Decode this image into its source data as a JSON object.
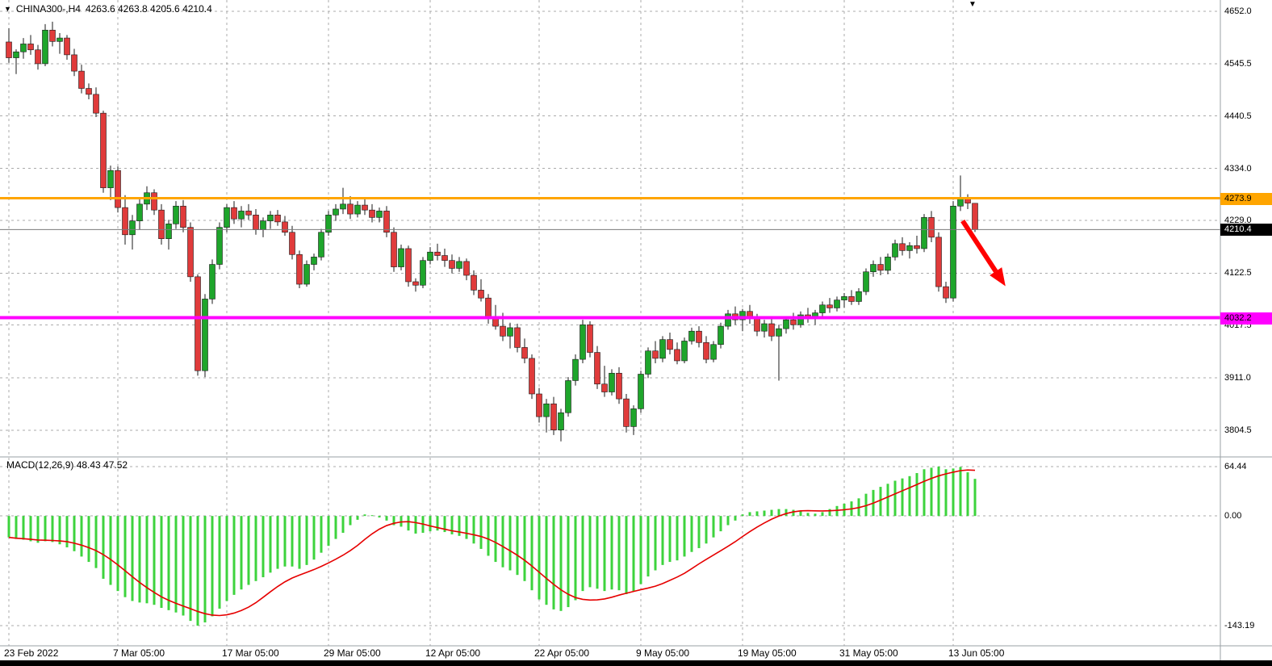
{
  "header": {
    "symbol": "CHINA300-,H4",
    "ohlc": "4263.6 4263.8 4205.6 4210.4"
  },
  "chart_data": {
    "type": "candlestick",
    "symbol": "CHINA300-",
    "timeframe": "H4",
    "grid": true,
    "colors": {
      "up": "#1ea52b",
      "down": "#e03b3b",
      "wick": "#1a1a1a",
      "grid": "#ababab",
      "separator": "#9aa0a6",
      "macd_hist": "#3dd33d",
      "macd_signal": "#e60000",
      "bid_line": "#7a7a7a"
    },
    "price_axis": {
      "ticks": [
        "4652.0",
        "4545.5",
        "4440.5",
        "4334.0",
        "4229.0",
        "4122.5",
        "4017.5",
        "3911.0",
        "3804.5"
      ]
    },
    "time_axis": {
      "labels": [
        "23 Feb 2022",
        "7 Mar 05:00",
        "17 Mar 05:00",
        "29 Mar 05:00",
        "12 Apr 05:00",
        "22 Apr 05:00",
        "9 May 05:00",
        "19 May 05:00",
        "31 May 05:00",
        "13 Jun 05:00"
      ],
      "candle_indices": [
        0,
        15,
        30,
        44,
        58,
        73,
        87,
        101,
        115,
        130
      ]
    },
    "hlines": [
      {
        "name": "resistance",
        "price": 4273.9,
        "label": "4273.9",
        "color": "#ffa500",
        "text_color": "#000000",
        "width": 3
      },
      {
        "name": "support",
        "price": 4032.2,
        "label": "4032.2",
        "color": "#ff00ff",
        "text_color": "#000000",
        "width": 4
      }
    ],
    "bid": {
      "price": 4210.4,
      "label": "4210.4",
      "bg": "#000000",
      "text_color": "#ffffff"
    },
    "arrow": {
      "color": "#ff0000",
      "from": {
        "candle": 131.3,
        "price": 4228
      },
      "to": {
        "candle": 137.2,
        "price": 4096
      }
    },
    "candles": [
      [
        4590,
        4618,
        4548,
        4558
      ],
      [
        4558,
        4575,
        4525,
        4570
      ],
      [
        4570,
        4598,
        4556,
        4586
      ],
      [
        4586,
        4604,
        4564,
        4574
      ],
      [
        4574,
        4584,
        4534,
        4546
      ],
      [
        4546,
        4626,
        4541,
        4614
      ],
      [
        4614,
        4631,
        4581,
        4591
      ],
      [
        4591,
        4608,
        4566,
        4598
      ],
      [
        4598,
        4604,
        4554,
        4564
      ],
      [
        4564,
        4576,
        4521,
        4531
      ],
      [
        4531,
        4544,
        4486,
        4496
      ],
      [
        4496,
        4506,
        4474,
        4484
      ],
      [
        4484,
        4498,
        4438,
        4446
      ],
      [
        4446,
        4451,
        4285,
        4295
      ],
      [
        4295,
        4340,
        4270,
        4330
      ],
      [
        4330,
        4338,
        4245,
        4255
      ],
      [
        4255,
        4280,
        4180,
        4200
      ],
      [
        4200,
        4240,
        4170,
        4228
      ],
      [
        4228,
        4275,
        4210,
        4262
      ],
      [
        4262,
        4298,
        4250,
        4285
      ],
      [
        4285,
        4292,
        4240,
        4250
      ],
      [
        4250,
        4262,
        4180,
        4192
      ],
      [
        4192,
        4230,
        4170,
        4222
      ],
      [
        4222,
        4268,
        4212,
        4258
      ],
      [
        4258,
        4270,
        4205,
        4215
      ],
      [
        4215,
        4225,
        4105,
        4115
      ],
      [
        4115,
        4120,
        3915,
        3925
      ],
      [
        3925,
        4080,
        3912,
        4070
      ],
      [
        4070,
        4150,
        4060,
        4140
      ],
      [
        4140,
        4225,
        4130,
        4215
      ],
      [
        4215,
        4262,
        4205,
        4255
      ],
      [
        4255,
        4268,
        4222,
        4232
      ],
      [
        4232,
        4258,
        4215,
        4248
      ],
      [
        4248,
        4262,
        4230,
        4240
      ],
      [
        4240,
        4252,
        4200,
        4210
      ],
      [
        4210,
        4235,
        4195,
        4228
      ],
      [
        4228,
        4248,
        4212,
        4240
      ],
      [
        4240,
        4250,
        4218,
        4226
      ],
      [
        4226,
        4238,
        4198,
        4205
      ],
      [
        4205,
        4218,
        4150,
        4160
      ],
      [
        4160,
        4168,
        4092,
        4100
      ],
      [
        4100,
        4148,
        4095,
        4140
      ],
      [
        4140,
        4162,
        4128,
        4155
      ],
      [
        4155,
        4212,
        4148,
        4205
      ],
      [
        4205,
        4248,
        4198,
        4240
      ],
      [
        4240,
        4262,
        4228,
        4252
      ],
      [
        4252,
        4295,
        4242,
        4262
      ],
      [
        4262,
        4278,
        4232,
        4242
      ],
      [
        4242,
        4268,
        4235,
        4260
      ],
      [
        4260,
        4272,
        4240,
        4250
      ],
      [
        4250,
        4262,
        4225,
        4235
      ],
      [
        4235,
        4255,
        4225,
        4248
      ],
      [
        4248,
        4258,
        4195,
        4205
      ],
      [
        4205,
        4215,
        4125,
        4135
      ],
      [
        4135,
        4180,
        4128,
        4172
      ],
      [
        4172,
        4178,
        4095,
        4105
      ],
      [
        4105,
        4112,
        4085,
        4098
      ],
      [
        4098,
        4155,
        4092,
        4148
      ],
      [
        4148,
        4175,
        4140,
        4165
      ],
      [
        4165,
        4182,
        4148,
        4158
      ],
      [
        4158,
        4172,
        4135,
        4148
      ],
      [
        4148,
        4160,
        4122,
        4132
      ],
      [
        4132,
        4155,
        4125,
        4146
      ],
      [
        4146,
        4152,
        4108,
        4118
      ],
      [
        4118,
        4128,
        4078,
        4088
      ],
      [
        4088,
        4110,
        4065,
        4072
      ],
      [
        4072,
        4080,
        4020,
        4030
      ],
      [
        4030,
        4058,
        4008,
        4015
      ],
      [
        4015,
        4042,
        3985,
        3995
      ],
      [
        3995,
        4022,
        3970,
        4012
      ],
      [
        4012,
        4020,
        3962,
        3972
      ],
      [
        3972,
        3990,
        3940,
        3950
      ],
      [
        3950,
        3958,
        3868,
        3878
      ],
      [
        3878,
        3890,
        3820,
        3832
      ],
      [
        3832,
        3868,
        3800,
        3858
      ],
      [
        3858,
        3872,
        3795,
        3805
      ],
      [
        3805,
        3848,
        3782,
        3840
      ],
      [
        3840,
        3912,
        3832,
        3905
      ],
      [
        3905,
        3958,
        3895,
        3948
      ],
      [
        3948,
        4028,
        3940,
        4018
      ],
      [
        4018,
        4025,
        3952,
        3962
      ],
      [
        3962,
        3975,
        3888,
        3898
      ],
      [
        3898,
        3935,
        3872,
        3882
      ],
      [
        3882,
        3928,
        3875,
        3920
      ],
      [
        3920,
        3932,
        3858,
        3868
      ],
      [
        3868,
        3878,
        3800,
        3812
      ],
      [
        3812,
        3855,
        3795,
        3848
      ],
      [
        3848,
        3925,
        3840,
        3918
      ],
      [
        3918,
        3972,
        3910,
        3965
      ],
      [
        3965,
        3985,
        3940,
        3950
      ],
      [
        3950,
        3995,
        3942,
        3988
      ],
      [
        3988,
        4002,
        3958,
        3968
      ],
      [
        3968,
        3982,
        3938,
        3945
      ],
      [
        3945,
        3992,
        3940,
        3985
      ],
      [
        3985,
        4012,
        3978,
        4005
      ],
      [
        4005,
        4015,
        3972,
        3982
      ],
      [
        3982,
        3995,
        3940,
        3948
      ],
      [
        3948,
        3985,
        3942,
        3978
      ],
      [
        3978,
        4022,
        3970,
        4015
      ],
      [
        4015,
        4048,
        4008,
        4040
      ],
      [
        4040,
        4055,
        4018,
        4028
      ],
      [
        4028,
        4050,
        4005,
        4045
      ],
      [
        4045,
        4058,
        4020,
        4032
      ],
      [
        4032,
        4040,
        3995,
        4005
      ],
      [
        4005,
        4028,
        3992,
        4020
      ],
      [
        4020,
        4032,
        3985,
        3995
      ],
      [
        3995,
        4018,
        3905,
        4010
      ],
      [
        4010,
        4035,
        4000,
        4028
      ],
      [
        4028,
        4042,
        4008,
        4018
      ],
      [
        4018,
        4045,
        4012,
        4038
      ],
      [
        4038,
        4052,
        4022,
        4030
      ],
      [
        4030,
        4048,
        4018,
        4042
      ],
      [
        4042,
        4065,
        4035,
        4058
      ],
      [
        4058,
        4072,
        4042,
        4052
      ],
      [
        4052,
        4075,
        4045,
        4068
      ],
      [
        4068,
        4082,
        4052,
        4075
      ],
      [
        4075,
        4088,
        4058,
        4065
      ],
      [
        4065,
        4092,
        4058,
        4085
      ],
      [
        4085,
        4132,
        4078,
        4125
      ],
      [
        4125,
        4148,
        4115,
        4140
      ],
      [
        4140,
        4155,
        4118,
        4128
      ],
      [
        4128,
        4162,
        4120,
        4155
      ],
      [
        4155,
        4190,
        4148,
        4182
      ],
      [
        4182,
        4195,
        4158,
        4168
      ],
      [
        4168,
        4185,
        4152,
        4178
      ],
      [
        4178,
        4198,
        4162,
        4172
      ],
      [
        4172,
        4242,
        4165,
        4235
      ],
      [
        4235,
        4248,
        4185,
        4195
      ],
      [
        4195,
        4205,
        4085,
        4095
      ],
      [
        4095,
        4105,
        4062,
        4072
      ],
      [
        4072,
        4268,
        4065,
        4258
      ],
      [
        4258,
        4320,
        4248,
        4272
      ],
      [
        4272,
        4282,
        4252,
        4264
      ],
      [
        4263.6,
        4263.8,
        4205.6,
        4210.4
      ]
    ],
    "macd": {
      "label": "MACD(12,26,9) 48.43 47.52",
      "params": [
        12,
        26,
        9
      ],
      "values_text": {
        "macd": "48.43",
        "signal": "47.52"
      },
      "axis_ticks": [
        "64.44",
        "0.00",
        "-143.19"
      ],
      "histogram": [
        -28,
        -30,
        -31,
        -33,
        -35,
        -33,
        -34,
        -37,
        -41,
        -46,
        -53,
        -60,
        -68,
        -82,
        -90,
        -98,
        -106,
        -111,
        -113,
        -114,
        -116,
        -120,
        -123,
        -126,
        -130,
        -137,
        -143.19,
        -139,
        -131,
        -121,
        -111,
        -103,
        -96,
        -90,
        -85,
        -80,
        -74,
        -69,
        -66,
        -66,
        -69,
        -64,
        -57,
        -48,
        -39,
        -30,
        -22,
        -12,
        -5,
        2,
        1,
        -2,
        -6,
        -12,
        -14,
        -19,
        -23,
        -22,
        -20,
        -19,
        -21,
        -24,
        -26,
        -30,
        -36,
        -43,
        -52,
        -60,
        -67,
        -71,
        -77,
        -85,
        -97,
        -109,
        -116,
        -122,
        -124,
        -119,
        -110,
        -98,
        -93,
        -95,
        -98,
        -96,
        -97,
        -102,
        -98,
        -89,
        -79,
        -71,
        -64,
        -60,
        -58,
        -53,
        -47,
        -42,
        -36,
        -28,
        -20,
        -12,
        -6,
        2,
        5,
        6,
        7,
        8,
        9,
        9,
        8,
        6,
        4,
        3,
        5,
        9,
        13,
        16,
        19,
        23,
        29,
        34,
        38,
        42,
        46,
        49,
        52,
        56,
        61,
        63,
        64.44,
        61,
        62,
        64,
        57,
        48.43
      ]
    }
  }
}
